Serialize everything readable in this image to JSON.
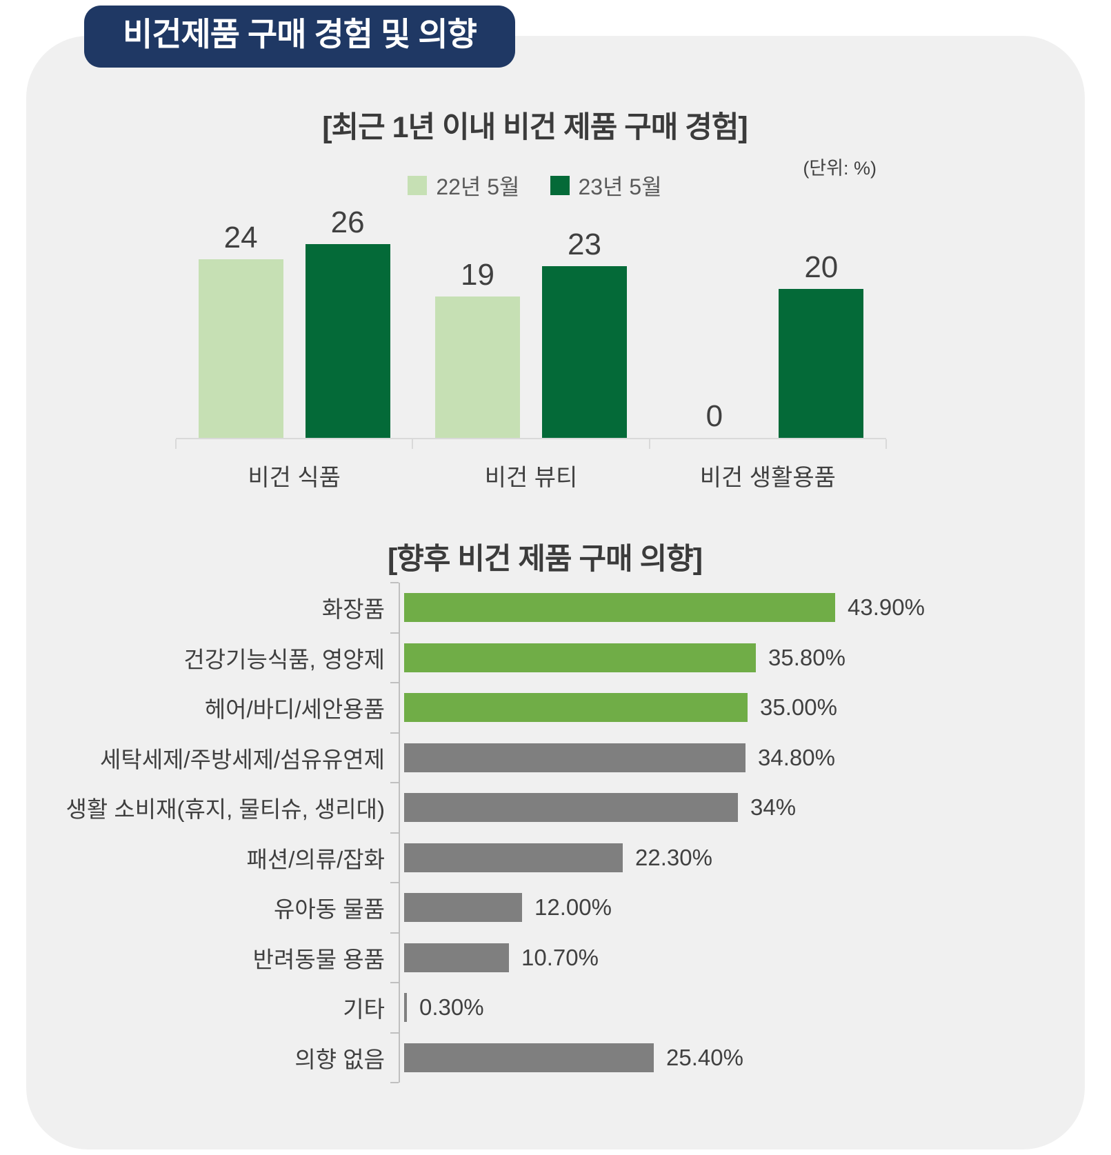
{
  "page": {
    "badge_title": "비건제품 구매 경험 및 의향",
    "badge_color": "#1f3864",
    "panel_color": "#f0f0f0"
  },
  "chart_data": [
    {
      "type": "bar",
      "orientation": "vertical",
      "title": "[최근 1년 이내 비건 제품 구매 경험]",
      "unit_label": "(단위: %)",
      "categories": [
        "비건 식품",
        "비건 뷰티",
        "비건 생활용품"
      ],
      "series": [
        {
          "name": "22년 5월",
          "color": "#c6e0b4",
          "values": [
            24,
            19,
            0
          ]
        },
        {
          "name": "23년 5월",
          "color": "#046a38",
          "values": [
            26,
            23,
            20
          ]
        }
      ],
      "ylim": [
        0,
        28
      ],
      "grid": false,
      "legend_position": "top",
      "value_labels": true
    },
    {
      "type": "bar",
      "orientation": "horizontal",
      "title": "[향후 비건 제품 구매 의향]",
      "categories": [
        "화장품",
        "건강기능식품, 영양제",
        "헤어/바디/세안용품",
        "세탁세제/주방세제/섬유유연제",
        "생활 소비재(휴지, 물티슈, 생리대)",
        "패션/의류/잡화",
        "유아동 물품",
        "반려동물 용품",
        "기타",
        "의향 없음"
      ],
      "values": [
        43.9,
        35.8,
        35.0,
        34.8,
        34.0,
        22.3,
        12.0,
        10.7,
        0.3,
        25.4
      ],
      "value_labels": [
        "43.90%",
        "35.80%",
        "35.00%",
        "34.80%",
        "34%",
        "22.30%",
        "12.00%",
        "10.70%",
        "0.30%",
        "25.40%"
      ],
      "bar_colors": [
        "#70ad47",
        "#70ad47",
        "#70ad47",
        "#7f7f7f",
        "#7f7f7f",
        "#7f7f7f",
        "#7f7f7f",
        "#7f7f7f",
        "#7f7f7f",
        "#7f7f7f"
      ],
      "xlim": [
        0,
        50
      ],
      "grid": false,
      "legend_position": "none"
    }
  ]
}
